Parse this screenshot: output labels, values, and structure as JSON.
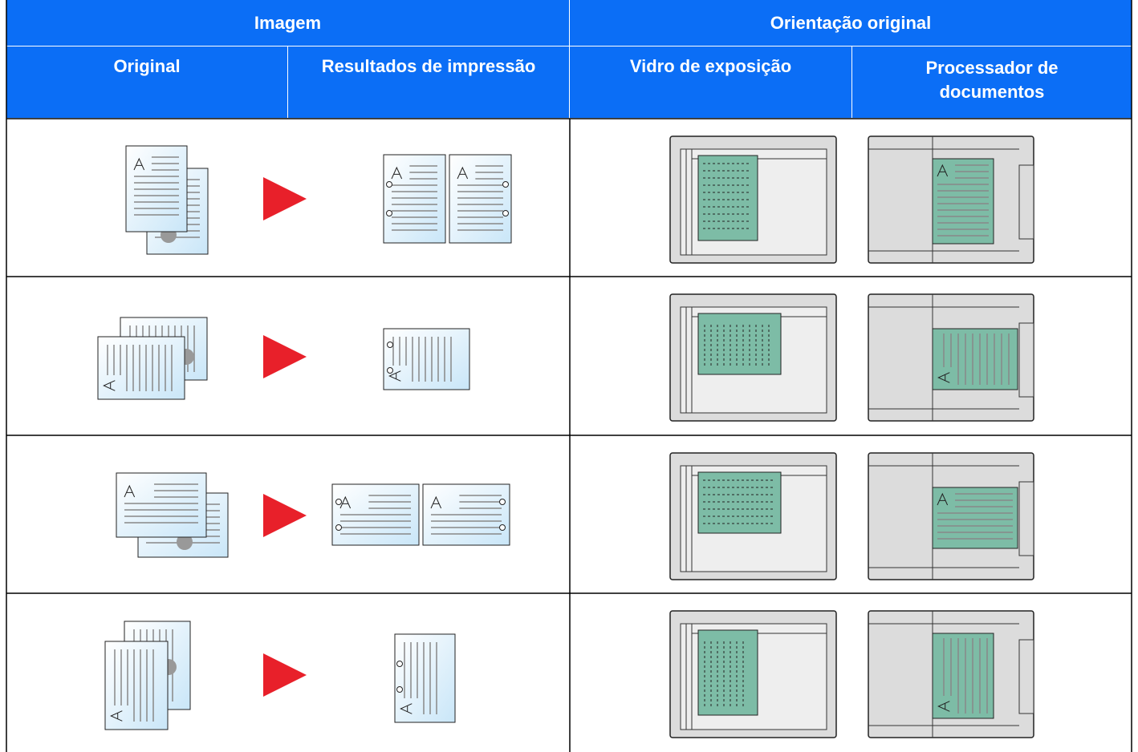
{
  "header": {
    "group_titles": [
      "Imagem",
      "Orientação original"
    ],
    "column_titles": [
      "Original",
      "Resultados de impressão",
      "Vidro de exposição",
      "Processador de documentos"
    ]
  }
}
